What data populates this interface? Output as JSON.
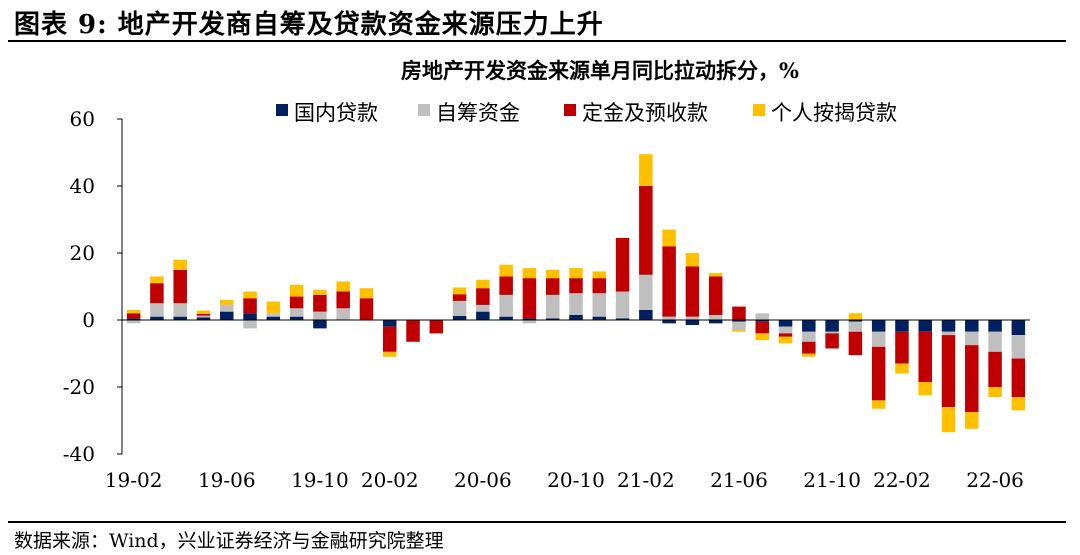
{
  "figure": {
    "title": "图表 9: 地产开发商自筹及贷款资金来源压力上升",
    "source": "数据来源：Wind，兴业证券经济与金融研究院整理"
  },
  "chart_data": {
    "type": "bar",
    "stacked": true,
    "title": "房地产开发资金来源单月同比拉动拆分，%",
    "ylim": [
      -40,
      60
    ],
    "yticks": [
      -40,
      -20,
      0,
      20,
      40,
      60
    ],
    "legend_position": "top",
    "categories": [
      "19-02",
      "19-03",
      "19-04",
      "19-05",
      "19-06",
      "19-07",
      "19-08",
      "19-09",
      "19-10",
      "19-11",
      "19-12",
      "20-02",
      "20-03",
      "20-04",
      "20-05",
      "20-06",
      "20-07",
      "20-08",
      "20-09",
      "20-10",
      "20-11",
      "20-12",
      "21-02",
      "21-03",
      "21-04",
      "21-05",
      "21-06",
      "21-07",
      "21-08",
      "21-09",
      "21-10",
      "21-11",
      "21-12",
      "22-02",
      "22-03",
      "22-04",
      "22-05",
      "22-06",
      "22-07"
    ],
    "xtick_labels": [
      "19-02",
      "19-06",
      "19-10",
      "20-02",
      "20-06",
      "20-10",
      "21-02",
      "21-06",
      "21-10",
      "22-02",
      "22-06"
    ],
    "series": [
      {
        "name": "国内贷款",
        "color": "#002060",
        "values": [
          0.5,
          1,
          1,
          0.8,
          2.5,
          2,
          1,
          1,
          -2.5,
          0,
          0,
          -2,
          0,
          0,
          1.2,
          2.5,
          1,
          0.5,
          0.5,
          1.5,
          1,
          0.5,
          3,
          -1,
          -1.5,
          -1,
          -0.5,
          -0.5,
          -2,
          -3.5,
          -3.5,
          -0.5,
          -3.5,
          -3.5,
          -3.5,
          -3.5,
          -3.5,
          -3.5,
          -4.5
        ]
      },
      {
        "name": "自筹资金",
        "color": "#bfbfbf",
        "values": [
          -1,
          4,
          4,
          0.5,
          2,
          -2.5,
          1,
          2.5,
          2.5,
          3.5,
          0,
          0,
          0,
          0,
          4.5,
          2,
          6.5,
          -1,
          7,
          6.5,
          7,
          8,
          10.5,
          1,
          1,
          1.5,
          -2.5,
          2,
          -2,
          -3,
          -0.5,
          -3,
          -4.5,
          0,
          0,
          -1,
          -4,
          -6,
          -7
        ]
      },
      {
        "name": "定金及预收款",
        "color": "#c00000",
        "values": [
          1.5,
          6,
          10,
          0.5,
          0,
          4.5,
          0,
          3.5,
          5,
          5,
          6.5,
          -7.5,
          -6.5,
          -4,
          2,
          5,
          5.5,
          12,
          5,
          4.5,
          4.5,
          16,
          26.5,
          21,
          15,
          11.5,
          4,
          -3.5,
          -1,
          -3.5,
          -4.5,
          -7,
          -16,
          -9.5,
          -15,
          -21.5,
          -20,
          -10.5,
          -11.5
        ]
      },
      {
        "name": "个人按揭贷款",
        "color": "#ffc000",
        "values": [
          1,
          2,
          3,
          1,
          1.5,
          2,
          3.5,
          3.5,
          1.5,
          3,
          3,
          -1.5,
          0,
          0,
          2,
          2.5,
          3.5,
          3,
          2.5,
          3,
          2,
          0,
          9.5,
          5,
          4,
          1,
          -0.5,
          -2,
          -2,
          -1,
          0,
          2,
          -2.5,
          -3,
          -4,
          -7.5,
          -5,
          -3,
          -4
        ]
      }
    ]
  }
}
